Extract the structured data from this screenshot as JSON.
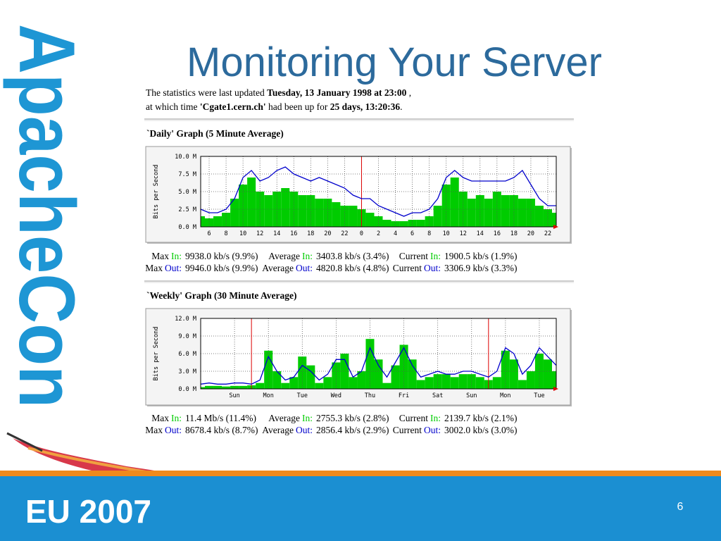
{
  "slide": {
    "logo": "ApacheCon",
    "title": "Monitoring Your Server",
    "footer": "EU 2007",
    "page": "6"
  },
  "header": {
    "line1": [
      "The statistics were last updated",
      "Tuesday, 13 January 1998 at 23:00",
      ","
    ],
    "line2": [
      "at which time",
      "'Cgate1.cern.ch'",
      "had been up for",
      "25 days, 13:20:36",
      "."
    ]
  },
  "chart_data": [
    {
      "type": "bar-line",
      "title": "`Daily' Graph (5 Minute Average)",
      "y_label": "Bits per Second",
      "x": [
        5,
        6,
        7,
        8,
        9,
        10,
        11,
        12,
        13,
        14,
        15,
        16,
        17,
        18,
        19,
        20,
        21,
        22,
        23,
        24,
        25,
        26,
        27,
        28,
        29,
        30,
        31,
        32,
        33,
        34,
        35,
        36,
        37,
        38,
        39,
        40,
        41,
        42,
        43,
        44,
        45,
        46,
        47
      ],
      "xlim": [
        5,
        47
      ],
      "xticks": [
        6,
        8,
        10,
        12,
        14,
        16,
        18,
        20,
        22,
        {
          "value": 24,
          "label": "0"
        },
        {
          "value": 26,
          "label": "2"
        },
        {
          "value": 28,
          "label": "4"
        },
        {
          "value": 30,
          "label": "6"
        },
        {
          "value": 32,
          "label": "8"
        },
        {
          "value": 34,
          "label": "10"
        },
        {
          "value": 36,
          "label": "12"
        },
        {
          "value": 38,
          "label": "14"
        },
        {
          "value": 40,
          "label": "16"
        },
        {
          "value": 42,
          "label": "18"
        },
        {
          "value": 44,
          "label": "20"
        },
        {
          "value": 46,
          "label": "22"
        }
      ],
      "ylim": [
        0,
        10
      ],
      "yticks": [
        {
          "value": 0,
          "label": "0.0 M"
        },
        {
          "value": 2.5,
          "label": "2.5 M"
        },
        {
          "value": 5,
          "label": "5.0 M"
        },
        {
          "value": 7.5,
          "label": "7.5 M"
        },
        {
          "value": 10,
          "label": "10.0 M"
        }
      ],
      "grid": true,
      "markers_x": [
        24
      ],
      "marker_color": "#dd0000",
      "series": [
        {
          "name": "In:",
          "color": "#00cc00",
          "style": "bar",
          "values": [
            1.5,
            1.2,
            1.5,
            2,
            4,
            6,
            7,
            5,
            4.5,
            5,
            5.5,
            5,
            4.5,
            4.5,
            4,
            4,
            3.5,
            3,
            3,
            2.5,
            2,
            1.5,
            1,
            0.8,
            0.8,
            1,
            1,
            1.5,
            3,
            6,
            7,
            5,
            4,
            4.5,
            4,
            5,
            4.5,
            4.5,
            4,
            4,
            3,
            2.5,
            2
          ]
        },
        {
          "name": "Out:",
          "color": "#0000cc",
          "style": "line",
          "values": [
            2.5,
            2,
            2,
            2.5,
            4,
            7,
            8,
            6.5,
            7,
            8,
            8.5,
            7.5,
            7,
            6.5,
            7,
            6.5,
            6,
            5.5,
            4.5,
            4,
            4,
            3,
            2.5,
            2,
            1.5,
            2,
            2,
            2.5,
            4,
            7,
            8,
            7,
            6.5,
            6.5,
            6.5,
            6.5,
            6.5,
            7,
            8,
            6,
            4,
            3,
            3
          ]
        }
      ],
      "stats": [
        [
          {
            "label": "Max",
            "value": "9938.0 kb/s (9.9%)"
          },
          {
            "label": "Average",
            "value": "3403.8 kb/s (3.4%)"
          },
          {
            "label": "Current",
            "value": "1900.5 kb/s (1.9%)"
          }
        ],
        [
          {
            "label": "Max",
            "value": "9946.0 kb/s (9.9%)"
          },
          {
            "label": "Average",
            "value": "4820.8 kb/s (4.8%)"
          },
          {
            "label": "Current",
            "value": "3306.9 kb/s (3.3%)"
          }
        ]
      ]
    },
    {
      "type": "bar-line",
      "title": "`Weekly' Graph (30 Minute Average)",
      "y_label": "Bits per Second",
      "x": [
        0,
        0.25,
        0.5,
        0.75,
        1,
        1.25,
        1.5,
        1.75,
        2,
        2.25,
        2.5,
        2.75,
        3,
        3.25,
        3.5,
        3.75,
        4,
        4.25,
        4.5,
        4.75,
        5,
        5.25,
        5.5,
        5.75,
        6,
        6.25,
        6.5,
        6.75,
        7,
        7.25,
        7.5,
        7.75,
        8,
        8.25,
        8.5,
        8.75,
        9,
        9.25,
        9.5,
        9.75,
        10,
        10.25,
        10.5
      ],
      "xlim": [
        0,
        10.5
      ],
      "xticks": [
        {
          "value": 1,
          "label": "Sun"
        },
        {
          "value": 2,
          "label": "Mon"
        },
        {
          "value": 3,
          "label": "Tue"
        },
        {
          "value": 4,
          "label": "Wed"
        },
        {
          "value": 5,
          "label": "Thu"
        },
        {
          "value": 6,
          "label": "Fri"
        },
        {
          "value": 7,
          "label": "Sat"
        },
        {
          "value": 8,
          "label": "Sun"
        },
        {
          "value": 9,
          "label": "Mon"
        },
        {
          "value": 10,
          "label": "Tue"
        }
      ],
      "ylim": [
        0,
        12
      ],
      "yticks": [
        {
          "value": 0,
          "label": "0.0 M"
        },
        {
          "value": 3,
          "label": "3.0 M"
        },
        {
          "value": 6,
          "label": "6.0 M"
        },
        {
          "value": 9,
          "label": "9.0 M"
        },
        {
          "value": 12,
          "label": "12.0 M"
        }
      ],
      "grid": true,
      "markers_x": [
        1.5,
        8.5
      ],
      "marker_color": "#dd0000",
      "series": [
        {
          "name": "In:",
          "color": "#00cc00",
          "style": "bar",
          "values": [
            0.3,
            0.5,
            0.5,
            0.4,
            0.5,
            0.5,
            0.6,
            1,
            6.5,
            3,
            1,
            2,
            5.5,
            4,
            1,
            2,
            4.5,
            6,
            2,
            3,
            8.5,
            5,
            1,
            4,
            7.5,
            5,
            1.5,
            2,
            2.5,
            2.5,
            2,
            2.5,
            2.5,
            2,
            1.5,
            2,
            6.5,
            5,
            1.5,
            3,
            6,
            5,
            3
          ]
        },
        {
          "name": "Out:",
          "color": "#0000cc",
          "style": "line",
          "values": [
            0.8,
            1,
            0.8,
            0.8,
            1,
            1,
            0.8,
            1.5,
            5.5,
            3,
            1.5,
            2,
            4,
            3,
            1.5,
            2.5,
            5,
            5,
            2,
            3,
            7,
            4,
            2,
            4.5,
            7,
            4,
            2,
            2.5,
            3,
            2.5,
            2.5,
            3,
            3,
            2.5,
            2,
            3,
            7,
            6,
            2.5,
            4,
            7,
            5.5,
            4
          ]
        }
      ],
      "stats": [
        [
          {
            "label": "Max",
            "value": "11.4 Mb/s (11.4%)"
          },
          {
            "label": "Average",
            "value": "2755.3 kb/s (2.8%)"
          },
          {
            "label": "Current",
            "value": "2139.7 kb/s (2.1%)"
          }
        ],
        [
          {
            "label": "Max",
            "value": "8678.4 kb/s (8.7%)"
          },
          {
            "label": "Average",
            "value": "2856.4 kb/s (2.9%)"
          },
          {
            "label": "Current",
            "value": "3002.0 kb/s (3.0%)"
          }
        ]
      ]
    }
  ]
}
